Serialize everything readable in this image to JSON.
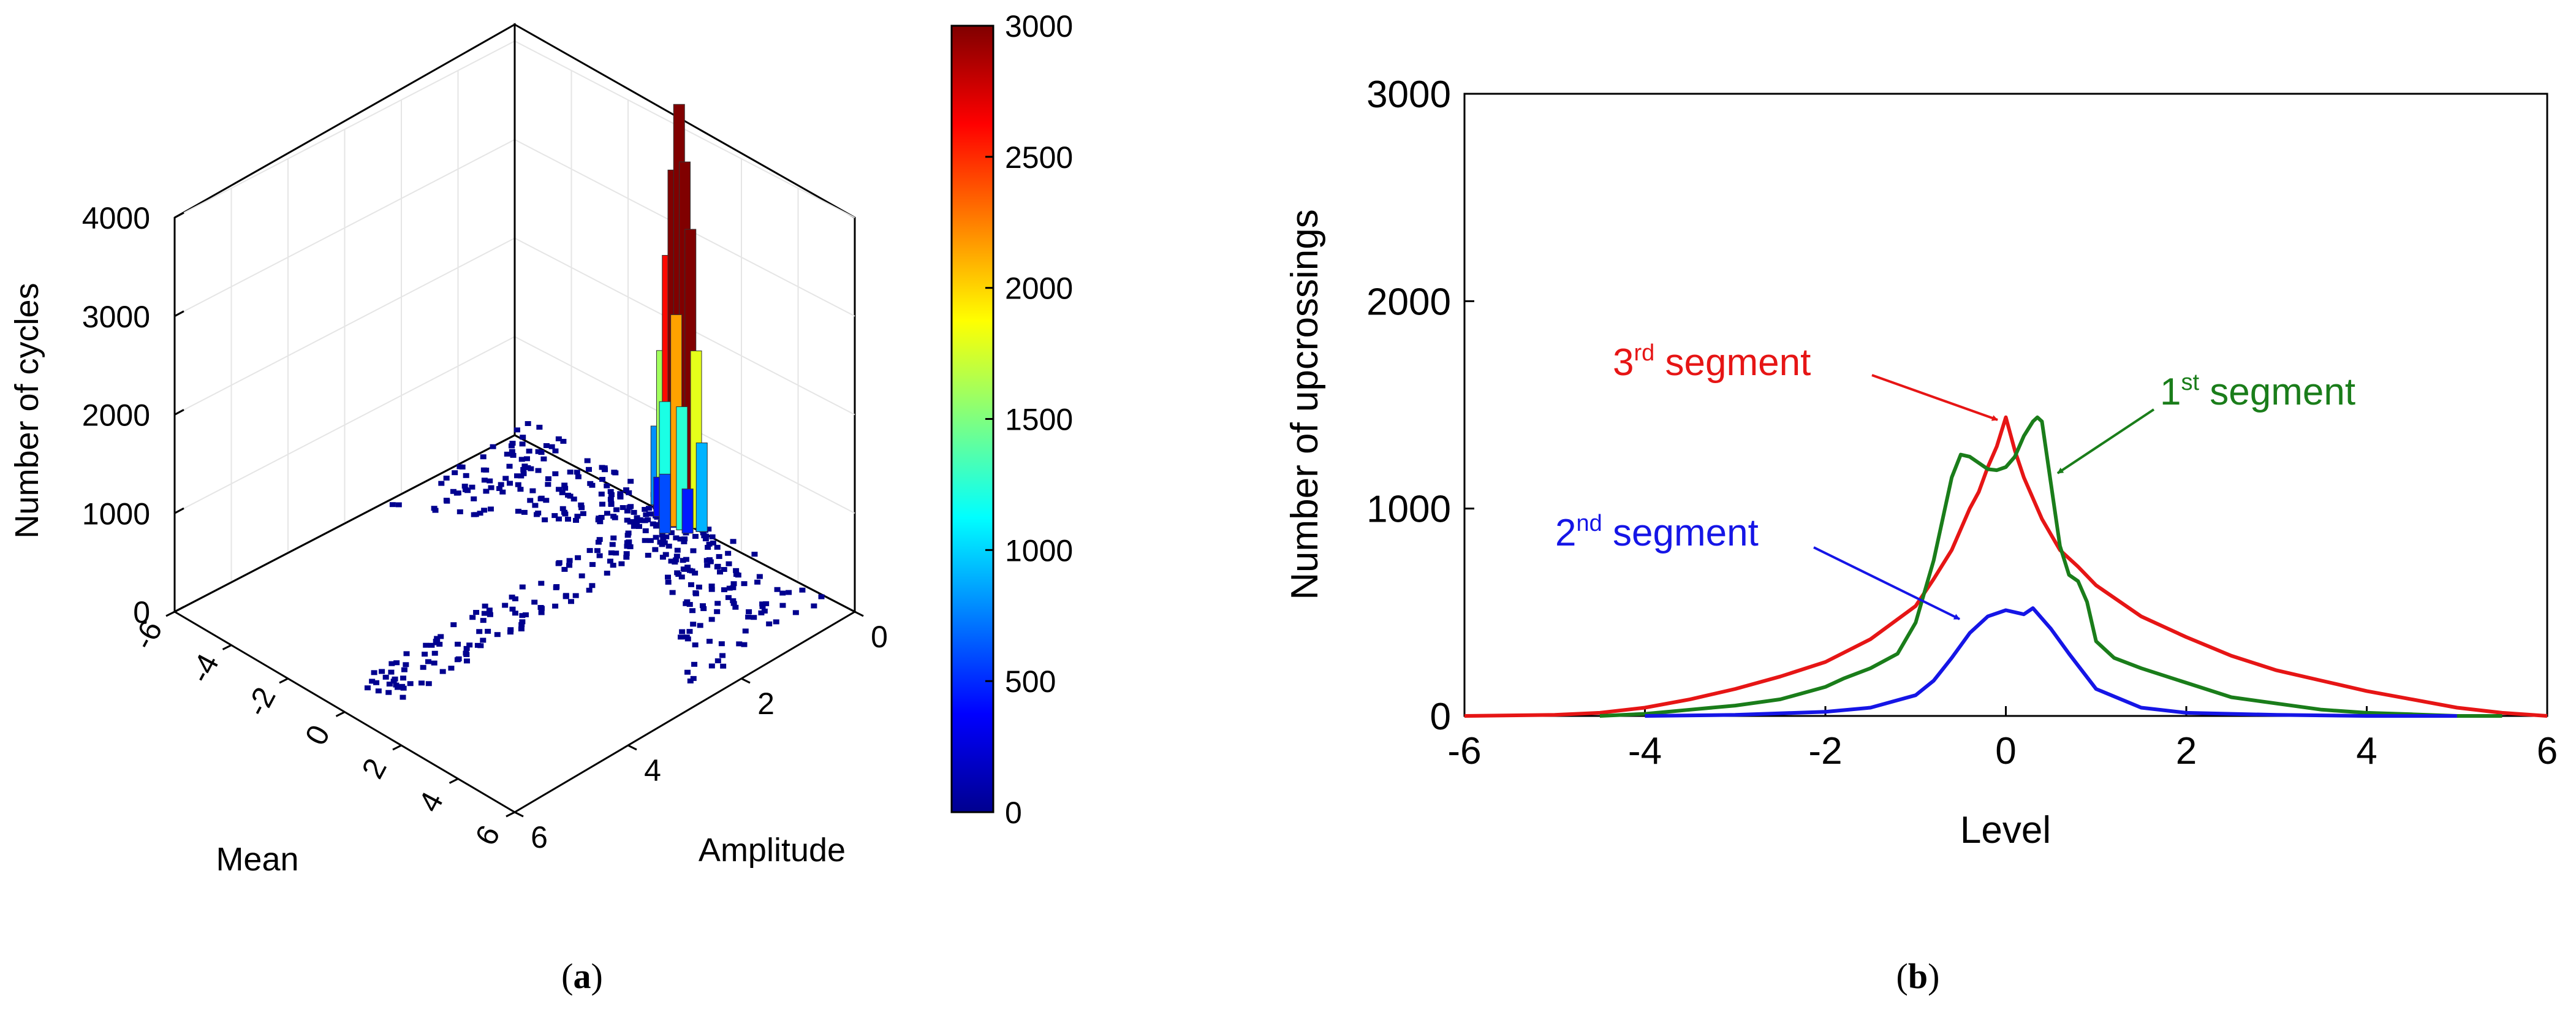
{
  "chart_data": [
    {
      "type": "bar3d",
      "panel_label": "a",
      "title": "",
      "xlabel": "Mean",
      "ylabel": "Amplitude",
      "zlabel": "Number of cycles",
      "xlim": [
        -6,
        6
      ],
      "ylim": [
        0,
        6
      ],
      "zlim": [
        0,
        4000
      ],
      "x_ticks": [
        -6,
        -4,
        -2,
        0,
        2,
        4,
        6
      ],
      "y_ticks": [
        0,
        2,
        4,
        6
      ],
      "z_ticks": [
        0,
        1000,
        2000,
        3000,
        4000
      ],
      "colorbar": {
        "min": 0,
        "max": 3000,
        "ticks": [
          0,
          500,
          1000,
          1500,
          2000,
          2500,
          3000
        ],
        "colormap": "jet"
      },
      "peak_bars": [
        {
          "mean": 0.1,
          "amplitude": 0.15,
          "count": 4200
        },
        {
          "mean": 0.3,
          "amplitude": 0.15,
          "count": 3650
        },
        {
          "mean": -0.1,
          "amplitude": 0.15,
          "count": 3500
        },
        {
          "mean": 0.5,
          "amplitude": 0.15,
          "count": 3000
        },
        {
          "mean": 0.1,
          "amplitude": 0.05,
          "count": 2700
        },
        {
          "mean": -0.3,
          "amplitude": 0.15,
          "count": 2600
        },
        {
          "mean": 0.3,
          "amplitude": 0.3,
          "count": 2150
        },
        {
          "mean": 0.7,
          "amplitude": 0.15,
          "count": 1800
        },
        {
          "mean": -0.5,
          "amplitude": 0.15,
          "count": 1600
        },
        {
          "mean": 0.5,
          "amplitude": 0.3,
          "count": 1250
        },
        {
          "mean": -0.1,
          "amplitude": 0.3,
          "count": 1200
        },
        {
          "mean": 0.9,
          "amplitude": 0.15,
          "count": 900
        },
        {
          "mean": -0.7,
          "amplitude": 0.15,
          "count": 800
        },
        {
          "mean": 0.3,
          "amplitude": 0.5,
          "count": 600
        },
        {
          "mean": 0.7,
          "amplitude": 0.3,
          "count": 450
        },
        {
          "mean": -0.3,
          "amplitude": 0.3,
          "count": 400
        }
      ]
    },
    {
      "type": "line",
      "panel_label": "b",
      "title": "",
      "xlabel": "Level",
      "ylabel": "Number of upcrossings",
      "xlim": [
        -6,
        6
      ],
      "ylim": [
        0,
        3000
      ],
      "x_ticks": [
        -6,
        -4,
        -2,
        0,
        2,
        4,
        6
      ],
      "y_ticks": [
        0,
        1000,
        2000,
        3000
      ],
      "series": [
        {
          "name": "1st segment",
          "label_base": "1",
          "label_sup": "st",
          "label_rest": " segment",
          "color": "#1a7d1a",
          "x": [
            -4.5,
            -4,
            -3.5,
            -3,
            -2.5,
            -2,
            -1.8,
            -1.5,
            -1.2,
            -1,
            -0.8,
            -0.6,
            -0.5,
            -0.4,
            -0.3,
            -0.2,
            -0.1,
            0,
            0.1,
            0.2,
            0.3,
            0.35,
            0.4,
            0.5,
            0.6,
            0.7,
            0.8,
            0.9,
            1,
            1.2,
            1.5,
            2,
            2.5,
            3,
            3.5,
            4,
            4.5,
            5,
            5.5
          ],
          "y": [
            0,
            10,
            30,
            50,
            80,
            140,
            180,
            230,
            300,
            450,
            750,
            1150,
            1260,
            1250,
            1220,
            1190,
            1185,
            1200,
            1250,
            1350,
            1420,
            1440,
            1420,
            1120,
            820,
            680,
            650,
            550,
            360,
            280,
            230,
            160,
            90,
            60,
            30,
            15,
            8,
            0,
            0
          ]
        },
        {
          "name": "2nd segment",
          "label_base": "2",
          "label_sup": "nd",
          "label_rest": " segment",
          "color": "#1515e6",
          "x": [
            -4,
            -3,
            -2,
            -1.5,
            -1,
            -0.8,
            -0.6,
            -0.4,
            -0.2,
            0,
            0.1,
            0.2,
            0.3,
            0.4,
            0.5,
            0.7,
            1,
            1.5,
            2,
            3,
            4,
            5
          ],
          "y": [
            0,
            5,
            20,
            40,
            100,
            170,
            280,
            400,
            480,
            510,
            500,
            490,
            520,
            470,
            420,
            300,
            130,
            40,
            15,
            5,
            0,
            0
          ]
        },
        {
          "name": "3rd segment",
          "label_base": "3",
          "label_sup": "rd",
          "label_rest": " segment",
          "color": "#e61515",
          "x": [
            -6,
            -5,
            -4.5,
            -4,
            -3.5,
            -3,
            -2.5,
            -2,
            -1.5,
            -1,
            -0.8,
            -0.6,
            -0.4,
            -0.3,
            -0.2,
            -0.1,
            0,
            0.1,
            0.2,
            0.4,
            0.6,
            0.8,
            1,
            1.5,
            2,
            2.5,
            3,
            3.5,
            4,
            4.5,
            5,
            5.5,
            6
          ],
          "y": [
            0,
            5,
            15,
            40,
            80,
            130,
            190,
            260,
            370,
            530,
            660,
            800,
            1000,
            1080,
            1200,
            1300,
            1440,
            1280,
            1150,
            950,
            800,
            720,
            630,
            480,
            380,
            290,
            220,
            170,
            120,
            80,
            40,
            15,
            0
          ]
        }
      ]
    }
  ],
  "panel_a_label": "a",
  "panel_b_label": "b"
}
